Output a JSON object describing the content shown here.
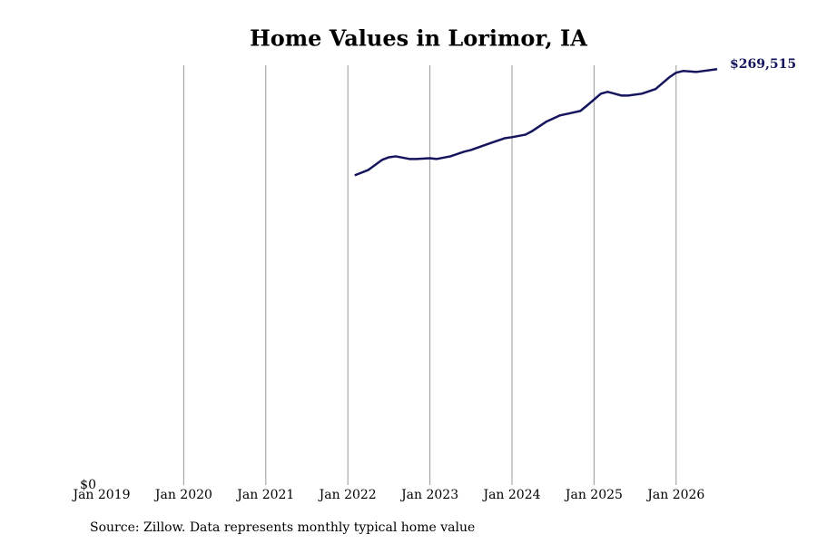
{
  "chart_data": {
    "type": "line",
    "title": "Home Values in Lorimor, IA",
    "source": "Source: Zillow. Data represents monthly typical home value",
    "x": [
      "2022-02",
      "2022-04",
      "2022-06",
      "2022-07",
      "2022-08",
      "2022-10",
      "2022-11",
      "2023-01",
      "2023-02",
      "2023-04",
      "2023-06",
      "2023-07",
      "2023-10",
      "2023-12",
      "2024-01",
      "2024-03",
      "2024-04",
      "2024-06",
      "2024-08",
      "2024-11",
      "2024-12",
      "2025-02",
      "2025-03",
      "2025-04",
      "2025-05",
      "2025-06",
      "2025-08",
      "2025-10",
      "2025-12",
      "2026-01",
      "2026-02",
      "2026-04",
      "2026-07"
    ],
    "series": [
      {
        "color": "#15155e",
        "values": [
          200700,
          204200,
          210700,
          212400,
          213000,
          211300,
          211300,
          211800,
          211300,
          213000,
          216000,
          217100,
          221800,
          224800,
          225400,
          227100,
          229500,
          235400,
          239500,
          242400,
          246000,
          253600,
          254800,
          253600,
          252400,
          252400,
          253600,
          256600,
          264200,
          267200,
          268300,
          267700,
          269515
        ],
        "value_labels": [
          null,
          null,
          null,
          null,
          null,
          null,
          null,
          null,
          null,
          null,
          null,
          null,
          null,
          null,
          null,
          null,
          null,
          null,
          null,
          null,
          null,
          null,
          null,
          null,
          null,
          null,
          null,
          null,
          null,
          null,
          null,
          null,
          "$269,515"
        ]
      }
    ],
    "xlim": [
      "2019-01",
      "2026-07"
    ],
    "xticks": [
      {
        "value": "2019-01",
        "label": "Jan 2019"
      },
      {
        "value": "2020-01",
        "label": "Jan 2020"
      },
      {
        "value": "2021-01",
        "label": "Jan 2021"
      },
      {
        "value": "2022-01",
        "label": "Jan 2022"
      },
      {
        "value": "2023-01",
        "label": "Jan 2023"
      },
      {
        "value": "2024-01",
        "label": "Jan 2024"
      },
      {
        "value": "2025-01",
        "label": "Jan 2025"
      },
      {
        "value": "2026-01",
        "label": "Jan 2026"
      }
    ],
    "ylim": [
      0,
      272000
    ],
    "yticks": [
      {
        "value": 0,
        "label": "$0"
      }
    ],
    "grid": true
  }
}
